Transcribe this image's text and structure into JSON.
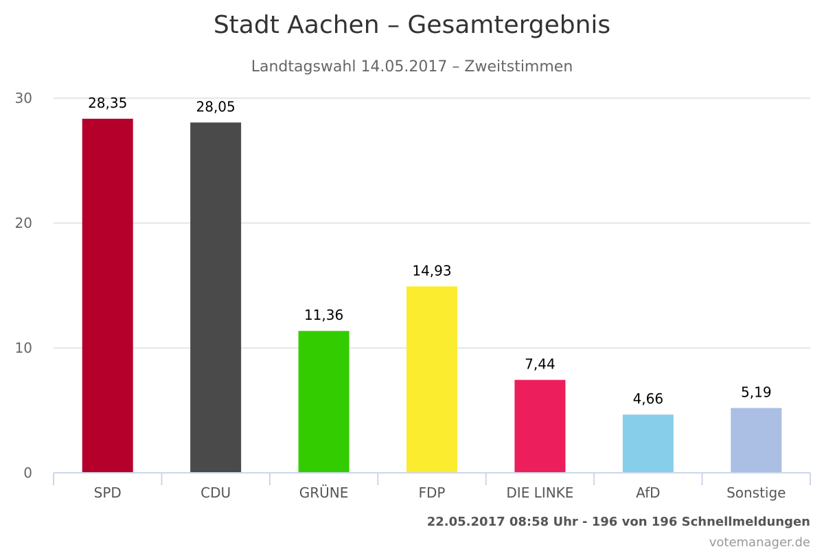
{
  "chart_data": {
    "type": "bar",
    "title": "Stadt Aachen – Gesamtergebnis",
    "subtitle": "Landtagswahl 14.05.2017 – Zweitstimmen",
    "categories": [
      "SPD",
      "CDU",
      "GRÜNE",
      "FDP",
      "DIE LINKE",
      "AfD",
      "Sonstige"
    ],
    "values": [
      28.35,
      28.05,
      11.36,
      14.93,
      7.44,
      4.66,
      5.19
    ],
    "value_labels": [
      "28,35",
      "28,05",
      "11,36",
      "14,93",
      "7,44",
      "4,66",
      "5,19"
    ],
    "colors": [
      "#b5002b",
      "#4a4a4a",
      "#33cc00",
      "#fbec2f",
      "#ec1e5c",
      "#87ceeb",
      "#abbee3"
    ],
    "ylim": [
      0,
      30
    ],
    "yticks": [
      0,
      10,
      20,
      30
    ],
    "grid": true,
    "legend": "none"
  },
  "credits": {
    "status": "22.05.2017 08:58 Uhr - 196 von 196 Schnellmeldungen",
    "source": "votemanager.de"
  }
}
